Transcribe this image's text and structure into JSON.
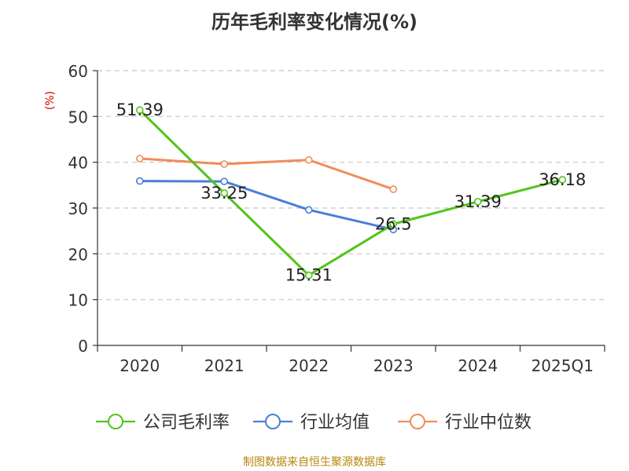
{
  "chart_data": {
    "type": "line",
    "title": "历年毛利率变化情况(%)",
    "ylabel": "(%)",
    "xlabel": "",
    "categories": [
      "2020",
      "2021",
      "2022",
      "2023",
      "2024",
      "2025Q1"
    ],
    "ylim": [
      0,
      60
    ],
    "yticks": [
      0,
      10,
      20,
      30,
      40,
      50,
      60
    ],
    "grid": true,
    "legend_position": "bottom",
    "series": [
      {
        "name": "公司毛利率",
        "color": "#52c41a",
        "values": [
          51.39,
          33.25,
          15.31,
          26.5,
          31.39,
          36.18
        ],
        "labels": [
          "51.39",
          "33.25",
          "15.31",
          "26.5",
          "31.39",
          "36.18"
        ],
        "show_labels": true
      },
      {
        "name": "行业均值",
        "color": "#4a7fd6",
        "values": [
          35.9,
          35.8,
          29.6,
          25.3,
          null,
          null
        ],
        "show_labels": false
      },
      {
        "name": "行业中位数",
        "color": "#f08c5a",
        "values": [
          40.8,
          39.6,
          40.5,
          34.1,
          null,
          null
        ],
        "show_labels": false
      }
    ]
  },
  "footer": {
    "source": "制图数据来自恒生聚源数据库"
  },
  "colors": {
    "axis": "#333333",
    "grid": "#c8c8c8",
    "ylabel": "#cc0000",
    "source": "#b8860b"
  }
}
